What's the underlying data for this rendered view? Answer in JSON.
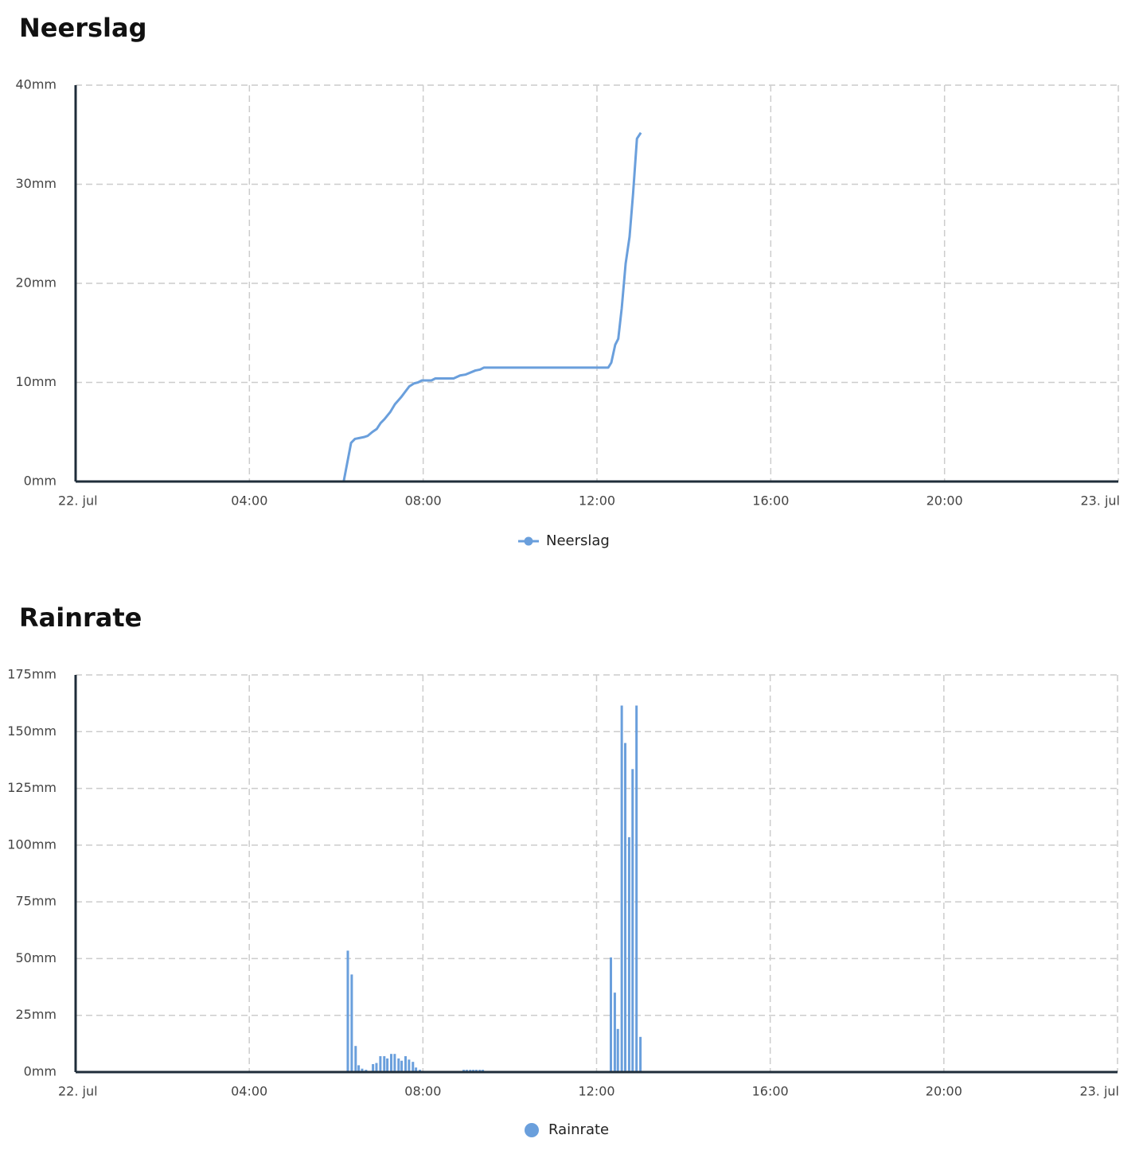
{
  "chart_data": [
    {
      "type": "line",
      "title": "Neerslag",
      "x": [
        0,
        6.17,
        6.34,
        6.43,
        6.54,
        6.65,
        6.72,
        6.83,
        6.93,
        7.02,
        7.11,
        7.24,
        7.35,
        7.49,
        7.68,
        7.79,
        7.88,
        7.97,
        8.19,
        8.28,
        8.7,
        8.85,
        8.98,
        9.2,
        9.31,
        9.4,
        12.26,
        12.33,
        12.42,
        12.49,
        12.57,
        12.66,
        12.75,
        12.83,
        12.92,
        13.01
      ],
      "series": [
        {
          "name": "Neerslag",
          "color": "#6a9fdc",
          "values": [
            0,
            0,
            3.9,
            4.3,
            4.4,
            4.5,
            4.6,
            5.0,
            5.3,
            5.9,
            6.3,
            7.0,
            7.8,
            8.5,
            9.6,
            9.9,
            10.0,
            10.2,
            10.2,
            10.4,
            10.4,
            10.7,
            10.8,
            11.2,
            11.3,
            11.5,
            11.5,
            12.0,
            13.8,
            14.4,
            17.5,
            22.0,
            24.7,
            29.0,
            34.6,
            35.2
          ]
        }
      ],
      "xlim": [
        0,
        24
      ],
      "xticks": [
        {
          "value": 0,
          "label": "22. jul"
        },
        {
          "value": 4,
          "label": "04:00"
        },
        {
          "value": 8,
          "label": "08:00"
        },
        {
          "value": 12,
          "label": "12:00"
        },
        {
          "value": 16,
          "label": "16:00"
        },
        {
          "value": 20,
          "label": "20:00"
        },
        {
          "value": 24,
          "label": "23. jul"
        }
      ],
      "ylim": [
        0,
        40
      ],
      "yticks": [
        {
          "value": 0,
          "label": "0mm"
        },
        {
          "value": 10,
          "label": "10mm"
        },
        {
          "value": 20,
          "label": "20mm"
        },
        {
          "value": 30,
          "label": "30mm"
        },
        {
          "value": 40,
          "label": "40mm"
        }
      ],
      "grid": true
    },
    {
      "type": "bar",
      "title": "Rainrate",
      "x": [
        6.27,
        6.36,
        6.45,
        6.52,
        6.6,
        6.69,
        6.85,
        6.93,
        7.02,
        7.11,
        7.18,
        7.27,
        7.35,
        7.44,
        7.51,
        7.6,
        7.68,
        7.77,
        7.84,
        7.93,
        8.0,
        8.94,
        9.01,
        9.09,
        9.16,
        9.23,
        9.31,
        9.38,
        12.33,
        12.42,
        12.49,
        12.58,
        12.66,
        12.75,
        12.83,
        12.92,
        13.01
      ],
      "series": [
        {
          "name": "Rainrate",
          "color": "#6a9fdc",
          "values": [
            53.5,
            43,
            11.5,
            3,
            1.5,
            1,
            3.5,
            4,
            7,
            7,
            6,
            8,
            8,
            6,
            5,
            7,
            5.5,
            4.5,
            2,
            1,
            0.5,
            1,
            1,
            1,
            1,
            1,
            1,
            1,
            50.5,
            35,
            19,
            161.5,
            145,
            103.5,
            133.5,
            161.5,
            15.5
          ]
        }
      ],
      "xlim": [
        0,
        24
      ],
      "xticks": [
        {
          "value": 0,
          "label": "22. jul"
        },
        {
          "value": 4,
          "label": "04:00"
        },
        {
          "value": 8,
          "label": "08:00"
        },
        {
          "value": 12,
          "label": "12:00"
        },
        {
          "value": 16,
          "label": "16:00"
        },
        {
          "value": 20,
          "label": "20:00"
        },
        {
          "value": 24,
          "label": "23. jul"
        }
      ],
      "ylim": [
        0,
        175
      ],
      "yticks": [
        {
          "value": 0,
          "label": "0mm"
        },
        {
          "value": 25,
          "label": "25mm"
        },
        {
          "value": 50,
          "label": "50mm"
        },
        {
          "value": 75,
          "label": "75mm"
        },
        {
          "value": 100,
          "label": "100mm"
        },
        {
          "value": 125,
          "label": "125mm"
        },
        {
          "value": 150,
          "label": "150mm"
        },
        {
          "value": 175,
          "label": "175mm"
        }
      ],
      "grid": true
    }
  ]
}
